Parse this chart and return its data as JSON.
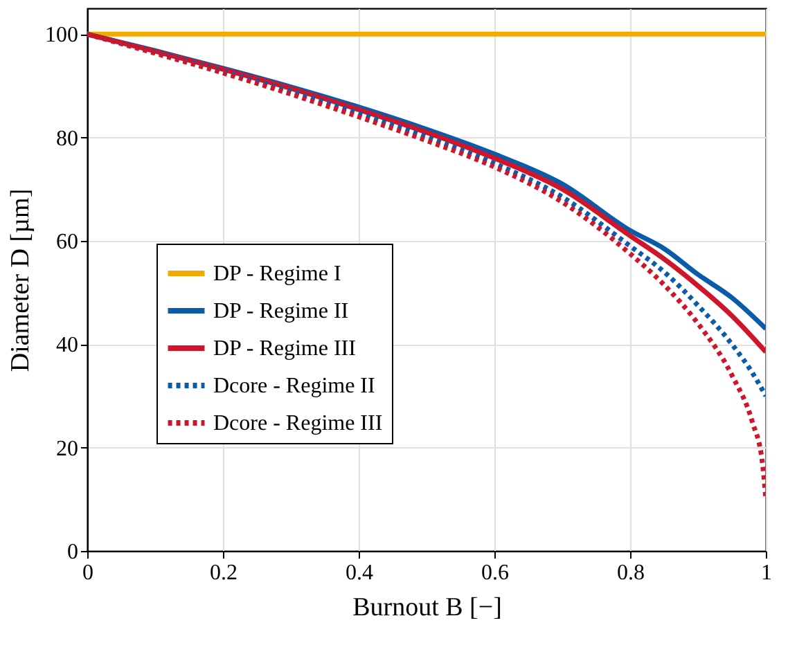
{
  "chart_data": {
    "type": "line",
    "xlabel": "Burnout B [−]",
    "ylabel": "Diameter D [µm]",
    "xlim": [
      0,
      1
    ],
    "ylim": [
      0,
      105
    ],
    "xticks": [
      0,
      0.2,
      0.4,
      0.6,
      0.8,
      1
    ],
    "yticks": [
      0,
      20,
      40,
      60,
      80,
      100
    ],
    "grid": true,
    "legend": "left",
    "marker": "none",
    "series": [
      {
        "name": "DP - Regime I",
        "color": "#f2a900",
        "line_style": "solid",
        "x": [
          0,
          1
        ],
        "values": [
          100,
          100
        ]
      },
      {
        "name": "DP - Regime II",
        "color": "#0a5ca8",
        "line_style": "solid",
        "x": [
          0,
          0.1,
          0.2,
          0.3,
          0.4,
          0.5,
          0.6,
          0.7,
          0.8,
          0.85,
          0.9,
          0.95,
          1
        ],
        "values": [
          100,
          96.8,
          93.4,
          89.8,
          85.9,
          81.6,
          76.8,
          71,
          62,
          58.5,
          53.5,
          49,
          43
        ]
      },
      {
        "name": "DP - Regime III",
        "color": "#d01429",
        "line_style": "solid",
        "x": [
          0,
          0.1,
          0.2,
          0.3,
          0.4,
          0.5,
          0.6,
          0.7,
          0.8,
          0.85,
          0.9,
          0.95,
          1
        ],
        "values": [
          100,
          96.7,
          93.2,
          89.5,
          85.4,
          81,
          76,
          70,
          61,
          56.5,
          51.3,
          45.5,
          38.5
        ]
      },
      {
        "name": "Dcore - Regime II",
        "color": "#0a5ca8",
        "line_style": "dotted",
        "x": [
          0,
          0.1,
          0.2,
          0.3,
          0.4,
          0.5,
          0.6,
          0.7,
          0.8,
          0.85,
          0.9,
          0.95,
          0.98,
          1
        ],
        "values": [
          100,
          96.5,
          92.8,
          88.9,
          84.7,
          80.1,
          75,
          68.5,
          59,
          54,
          47.5,
          40,
          34.5,
          30
        ]
      },
      {
        "name": "Dcore - Regime III",
        "color": "#d01429",
        "line_style": "dotted",
        "x": [
          0,
          0.1,
          0.2,
          0.3,
          0.4,
          0.5,
          0.6,
          0.7,
          0.8,
          0.85,
          0.9,
          0.95,
          0.98,
          0.995,
          1
        ],
        "values": [
          100,
          96.3,
          92.5,
          88.4,
          84,
          79.4,
          74.3,
          67.5,
          57.5,
          51.5,
          44,
          34,
          25,
          17,
          10
        ]
      }
    ]
  }
}
